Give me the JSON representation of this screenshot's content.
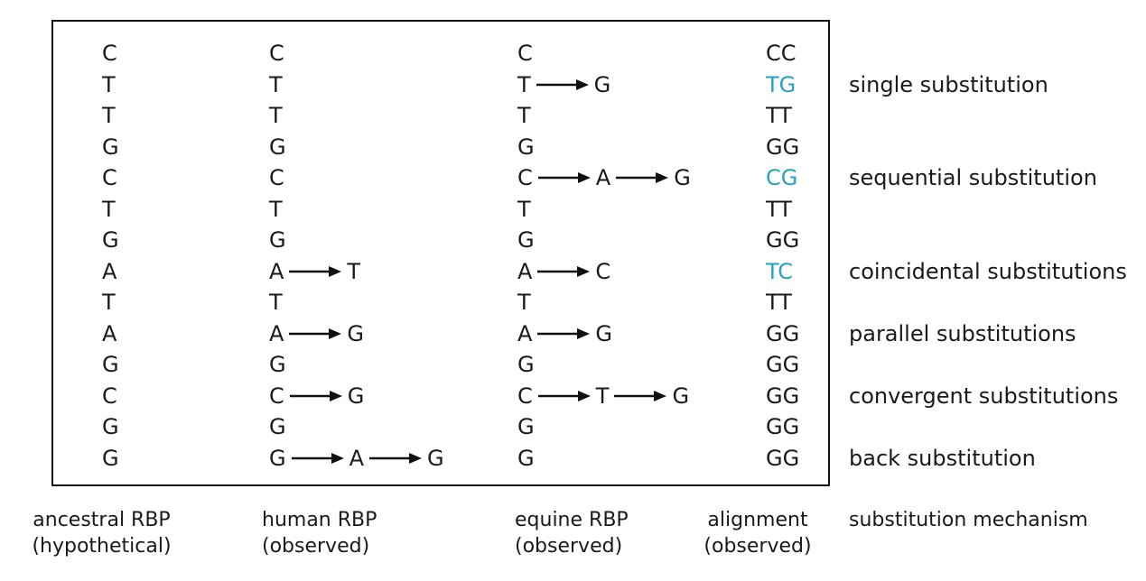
{
  "rows": [
    {
      "ancestral": [
        "C"
      ],
      "human": [
        "C"
      ],
      "equine": [
        "C"
      ],
      "alignment": [
        [
          "C",
          false
        ],
        [
          "C",
          false
        ]
      ],
      "mechanism": ""
    },
    {
      "ancestral": [
        "T"
      ],
      "human": [
        "T"
      ],
      "equine": [
        "T",
        "G"
      ],
      "alignment": [
        [
          "T",
          true
        ],
        [
          "G",
          true
        ]
      ],
      "mechanism": "single substitution"
    },
    {
      "ancestral": [
        "T"
      ],
      "human": [
        "T"
      ],
      "equine": [
        "T"
      ],
      "alignment": [
        [
          "T",
          false
        ],
        [
          "T",
          false
        ]
      ],
      "mechanism": ""
    },
    {
      "ancestral": [
        "G"
      ],
      "human": [
        "G"
      ],
      "equine": [
        "G"
      ],
      "alignment": [
        [
          "G",
          false
        ],
        [
          "G",
          false
        ]
      ],
      "mechanism": ""
    },
    {
      "ancestral": [
        "C"
      ],
      "human": [
        "C"
      ],
      "equine": [
        "C",
        "A",
        "G"
      ],
      "alignment": [
        [
          "C",
          true
        ],
        [
          "G",
          true
        ]
      ],
      "mechanism": "sequential substitution"
    },
    {
      "ancestral": [
        "T"
      ],
      "human": [
        "T"
      ],
      "equine": [
        "T"
      ],
      "alignment": [
        [
          "T",
          false
        ],
        [
          "T",
          false
        ]
      ],
      "mechanism": ""
    },
    {
      "ancestral": [
        "G"
      ],
      "human": [
        "G"
      ],
      "equine": [
        "G"
      ],
      "alignment": [
        [
          "G",
          false
        ],
        [
          "G",
          false
        ]
      ],
      "mechanism": ""
    },
    {
      "ancestral": [
        "A"
      ],
      "human": [
        "A",
        "T"
      ],
      "equine": [
        "A",
        "C"
      ],
      "alignment": [
        [
          "T",
          true
        ],
        [
          "C",
          true
        ]
      ],
      "mechanism": "coincidental substitutions"
    },
    {
      "ancestral": [
        "T"
      ],
      "human": [
        "T"
      ],
      "equine": [
        "T"
      ],
      "alignment": [
        [
          "T",
          false
        ],
        [
          "T",
          false
        ]
      ],
      "mechanism": ""
    },
    {
      "ancestral": [
        "A"
      ],
      "human": [
        "A",
        "G"
      ],
      "equine": [
        "A",
        "G"
      ],
      "alignment": [
        [
          "G",
          false
        ],
        [
          "G",
          false
        ]
      ],
      "mechanism": "parallel substitutions"
    },
    {
      "ancestral": [
        "G"
      ],
      "human": [
        "G"
      ],
      "equine": [
        "G"
      ],
      "alignment": [
        [
          "G",
          false
        ],
        [
          "G",
          false
        ]
      ],
      "mechanism": ""
    },
    {
      "ancestral": [
        "C"
      ],
      "human": [
        "C",
        "G"
      ],
      "equine": [
        "C",
        "T",
        "G"
      ],
      "alignment": [
        [
          "G",
          false
        ],
        [
          "G",
          false
        ]
      ],
      "mechanism": "convergent substitutions"
    },
    {
      "ancestral": [
        "G"
      ],
      "human": [
        "G"
      ],
      "equine": [
        "G"
      ],
      "alignment": [
        [
          "G",
          false
        ],
        [
          "G",
          false
        ]
      ],
      "mechanism": ""
    },
    {
      "ancestral": [
        "G"
      ],
      "human": [
        "G",
        "A",
        "G"
      ],
      "equine": [
        "G"
      ],
      "alignment": [
        [
          "G",
          false
        ],
        [
          "G",
          false
        ]
      ],
      "mechanism": "back substitution"
    }
  ],
  "captions": {
    "ancestral": [
      "ancestral RBP",
      "(hypothetical)"
    ],
    "human": [
      "human RBP",
      "(observed)"
    ],
    "equine": [
      "equine RBP",
      "(observed)"
    ],
    "alignment": [
      "alignment",
      "(observed)"
    ],
    "mechanism": [
      "substitution mechanism"
    ]
  },
  "colors": {
    "highlight": "#2a9fc4",
    "text": "#1a1a1a",
    "border": "#111111"
  }
}
